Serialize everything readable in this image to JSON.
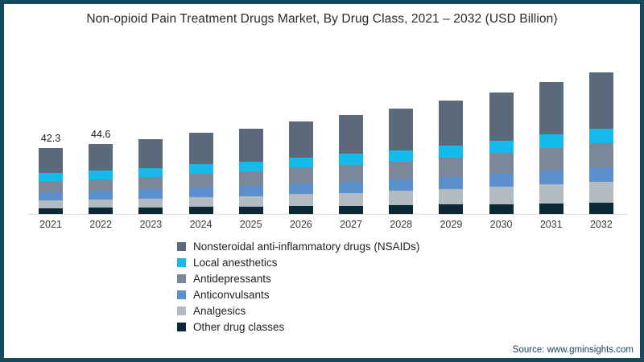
{
  "header": {
    "title": "Non-opioid Pain Treatment Drugs Market, By Drug Class, 2021 – 2032 (USD Billion)"
  },
  "footer": {
    "source": "Source: www.gminsights.com"
  },
  "frame": {
    "border_color": "#154a5e",
    "background": "#ffffff"
  },
  "chart_data": {
    "type": "bar",
    "stacked": true,
    "title": "Non-opioid Pain Treatment Drugs Market, By Drug Class, 2021 – 2032 (USD Billion)",
    "xlabel": "",
    "ylabel": "USD Billion",
    "grid": false,
    "legend_position": "bottom-center",
    "axis_line_color": "#dddddd",
    "categories": [
      "2021",
      "2022",
      "2023",
      "2024",
      "2025",
      "2026",
      "2027",
      "2028",
      "2029",
      "2030",
      "2031",
      "2032"
    ],
    "value_labels": [
      "42.3",
      "44.6",
      null,
      null,
      null,
      null,
      null,
      null,
      null,
      null,
      null,
      null
    ],
    "totals": [
      42.3,
      44.6,
      47.6,
      51.6,
      54.5,
      58.9,
      63.0,
      67.2,
      72.1,
      77.5,
      84.0,
      90.6
    ],
    "series": [
      {
        "name": "Nonsteroidal anti-inflammatory drugs (NSAIDs)",
        "color": "#5a6a7a",
        "values": [
          16.0,
          17.0,
          18.3,
          19.9,
          21.1,
          22.9,
          24.6,
          26.4,
          28.4,
          30.7,
          33.4,
          36.2
        ]
      },
      {
        "name": "Local anesthetics",
        "color": "#16b9ec",
        "values": [
          5.1,
          5.3,
          5.5,
          5.9,
          6.1,
          6.5,
          6.9,
          7.2,
          7.6,
          8.0,
          8.6,
          9.1
        ]
      },
      {
        "name": "Antidepressants",
        "color": "#7a8899",
        "values": [
          7.2,
          7.6,
          8.1,
          8.8,
          9.3,
          10.0,
          10.7,
          11.4,
          12.3,
          13.2,
          14.3,
          15.4
        ]
      },
      {
        "name": "Anticonvulsants",
        "color": "#5b90cd",
        "values": [
          5.5,
          5.7,
          5.9,
          6.3,
          6.5,
          6.9,
          7.2,
          7.5,
          7.8,
          8.2,
          8.6,
          9.1
        ]
      },
      {
        "name": "Analgesics",
        "color": "#b2bac2",
        "values": [
          4.7,
          5.0,
          5.6,
          6.2,
          6.8,
          7.6,
          8.3,
          9.1,
          10.0,
          11.1,
          12.3,
          13.6
        ]
      },
      {
        "name": "Other drug classes",
        "color": "#0e2936",
        "values": [
          3.8,
          4.0,
          4.2,
          4.5,
          4.7,
          5.0,
          5.3,
          5.6,
          6.0,
          6.3,
          6.8,
          7.2
        ]
      }
    ]
  }
}
